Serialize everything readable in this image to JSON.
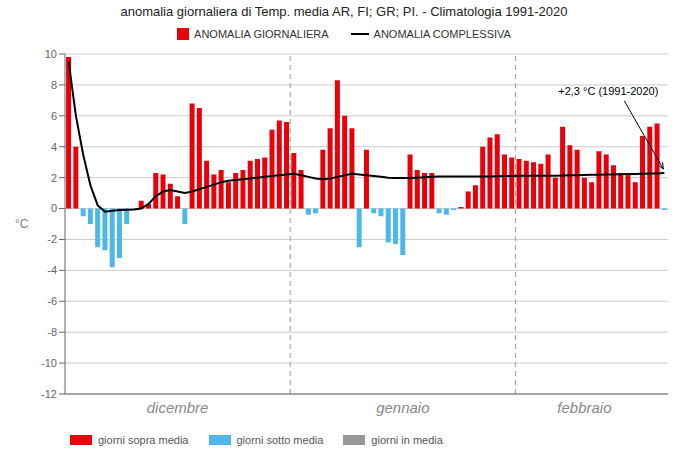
{
  "chart_data": {
    "type": "bar",
    "title": "anomalia giornaliera di Temp. media AR, FI; GR; PI. - Climatologia  1991-2020",
    "ylabel": "°C",
    "categories": [
      null,
      null,
      null,
      null,
      null,
      null,
      null,
      null,
      null,
      null,
      null,
      null,
      null,
      null,
      null,
      "dicembre",
      null,
      null,
      null,
      null,
      null,
      null,
      null,
      null,
      null,
      null,
      null,
      null,
      null,
      null,
      null,
      null,
      null,
      null,
      null,
      null,
      null,
      null,
      null,
      null,
      null,
      null,
      null,
      null,
      null,
      null,
      "gennaio",
      null,
      null,
      null,
      null,
      null,
      null,
      null,
      null,
      null,
      null,
      null,
      null,
      null,
      null,
      null,
      null,
      null,
      null,
      null,
      null,
      null,
      null,
      null,
      null,
      "febbraio",
      null,
      null,
      null,
      null,
      null,
      null,
      null,
      null,
      null,
      null,
      null
    ],
    "series": [
      {
        "name": "ANOMALIA GIORNALIERA",
        "type": "bar",
        "color": "#e8000b",
        "values": [
          9.8,
          4.0,
          -0.5,
          -1.0,
          -2.5,
          -2.7,
          -3.8,
          -3.2,
          -1.0,
          -0.1,
          0.5,
          0.3,
          2.3,
          2.2,
          1.6,
          0.8,
          -1.0,
          6.8,
          6.5,
          3.1,
          2.2,
          2.5,
          1.7,
          2.3,
          2.5,
          3.1,
          3.2,
          3.3,
          5.1,
          5.7,
          5.6,
          3.6,
          2.5,
          -0.4,
          -0.3,
          3.8,
          5.2,
          8.3,
          6.0,
          5.2,
          -2.5,
          3.8,
          -0.3,
          -0.5,
          -2.2,
          -2.3,
          -3.0,
          3.5,
          2.5,
          2.3,
          2.3,
          -0.3,
          -0.4,
          -0.1,
          0.1,
          1.1,
          1.5,
          4.0,
          4.6,
          4.8,
          3.5,
          3.3,
          3.2,
          3.1,
          3.0,
          2.9,
          3.5,
          2.0,
          5.3,
          4.1,
          3.8,
          2.0,
          1.7,
          3.7,
          3.5,
          2.8,
          2.3,
          2.2,
          1.7,
          4.7,
          5.3,
          5.5,
          -0.1
        ],
        "colors": [
          "#e8000b",
          "#e8000b",
          "#4db8e8",
          "#4db8e8",
          "#4db8e8",
          "#4db8e8",
          "#4db8e8",
          "#4db8e8",
          "#4db8e8",
          "#4db8e8",
          "#e8000b",
          "#e8000b",
          "#e8000b",
          "#e8000b",
          "#e8000b",
          "#e8000b",
          "#4db8e8",
          "#e8000b",
          "#e8000b",
          "#e8000b",
          "#e8000b",
          "#e8000b",
          "#e8000b",
          "#e8000b",
          "#e8000b",
          "#e8000b",
          "#e8000b",
          "#e8000b",
          "#e8000b",
          "#e8000b",
          "#e8000b",
          "#e8000b",
          "#e8000b",
          "#4db8e8",
          "#4db8e8",
          "#e8000b",
          "#e8000b",
          "#e8000b",
          "#e8000b",
          "#e8000b",
          "#4db8e8",
          "#e8000b",
          "#4db8e8",
          "#4db8e8",
          "#4db8e8",
          "#4db8e8",
          "#4db8e8",
          "#e8000b",
          "#e8000b",
          "#e8000b",
          "#e8000b",
          "#4db8e8",
          "#4db8e8",
          "#4db8e8",
          "#e8000b",
          "#e8000b",
          "#e8000b",
          "#e8000b",
          "#e8000b",
          "#e8000b",
          "#e8000b",
          "#e8000b",
          "#e8000b",
          "#e8000b",
          "#e8000b",
          "#e8000b",
          "#e8000b",
          "#e8000b",
          "#e8000b",
          "#e8000b",
          "#e8000b",
          "#e8000b",
          "#e8000b",
          "#e8000b",
          "#e8000b",
          "#e8000b",
          "#e8000b",
          "#e8000b",
          "#e8000b",
          "#e8000b",
          "#e8000b",
          "#e8000b",
          "#4db8e8"
        ]
      },
      {
        "name": "ANOMALIA COMPLESSIVA",
        "type": "line",
        "color": "#000000",
        "values": [
          9.5,
          6.0,
          3.5,
          1.5,
          0.2,
          -0.2,
          -0.15,
          -0.1,
          -0.08,
          -0.06,
          0.0,
          0.3,
          0.8,
          1.1,
          1.2,
          1.1,
          1.0,
          1.1,
          1.25,
          1.4,
          1.55,
          1.7,
          1.8,
          1.85,
          1.9,
          1.95,
          2.0,
          2.05,
          2.1,
          2.15,
          2.2,
          2.25,
          2.15,
          2.05,
          1.95,
          1.9,
          1.95,
          2.05,
          2.15,
          2.25,
          2.2,
          2.15,
          2.1,
          2.05,
          2.0,
          1.98,
          1.97,
          1.98,
          2.0,
          2.02,
          2.05,
          2.07,
          2.08,
          2.08,
          2.08,
          2.07,
          2.07,
          2.07,
          2.08,
          2.09,
          2.1,
          2.11,
          2.12,
          2.12,
          2.12,
          2.12,
          2.12,
          2.13,
          2.14,
          2.15,
          2.16,
          2.17,
          2.18,
          2.19,
          2.2,
          2.21,
          2.22,
          2.23,
          2.24,
          2.25,
          2.26,
          2.27,
          2.3
        ]
      }
    ],
    "ylim": [
      -12,
      10
    ],
    "yticks": [
      -12,
      -10,
      -8,
      -6,
      -4,
      -2,
      0,
      2,
      4,
      6,
      8,
      10
    ],
    "grid": true,
    "annotation": "+2,3 °C (1991-2020)",
    "color_legend": [
      {
        "label": "giorni sopra media",
        "color": "#e8000b"
      },
      {
        "label": "giorni sotto media",
        "color": "#4db8e8"
      },
      {
        "label": "giorni in media",
        "color": "#999999"
      }
    ],
    "month_separators_before": [
      31,
      62
    ]
  }
}
